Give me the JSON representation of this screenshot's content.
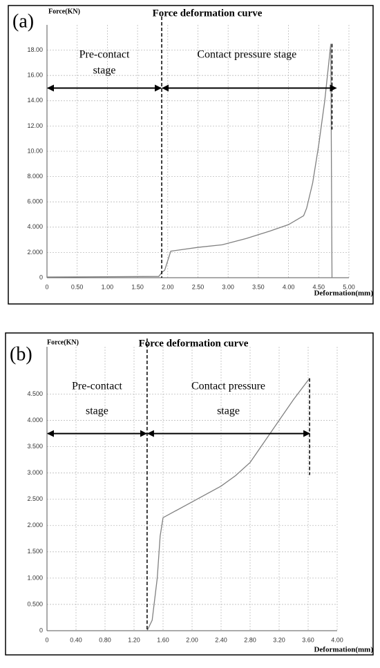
{
  "chart_data": [
    {
      "type": "line",
      "label": "(a)",
      "title": "Force deformation curve",
      "ylabel": "Force(KN)",
      "xlabel": "Deformation(mm)",
      "x": [
        0,
        1.85,
        1.9,
        1.95,
        2.05,
        2.5,
        2.9,
        3.3,
        3.7,
        4.0,
        4.25,
        4.3,
        4.4,
        4.5,
        4.6,
        4.7,
        4.72
      ],
      "series": [
        {
          "color": "#808080",
          "values": [
            0.05,
            0.1,
            0.4,
            0.6,
            2.1,
            2.4,
            2.6,
            3.1,
            3.7,
            4.2,
            4.9,
            5.5,
            7.5,
            10.5,
            14,
            18.5,
            0
          ]
        }
      ],
      "xlim": [
        0,
        5
      ],
      "ylim": [
        0,
        20
      ],
      "xticks": [
        0,
        {
          "value": 0.5,
          "label": "0.50"
        },
        {
          "value": 1,
          "label": "1.00"
        },
        {
          "value": 1.5,
          "label": "1.50"
        },
        {
          "value": 2,
          "label": "2.00"
        },
        {
          "value": 2.5,
          "label": "2.50"
        },
        {
          "value": 3,
          "label": "3.00"
        },
        {
          "value": 3.5,
          "label": "3.50"
        },
        {
          "value": 4,
          "label": "4.00"
        },
        {
          "value": 4.5,
          "label": "4.50"
        },
        {
          "value": 5,
          "label": "5.00"
        }
      ],
      "yticks": [
        0,
        {
          "value": 2,
          "label": "2.000"
        },
        {
          "value": 4,
          "label": "4.000"
        },
        {
          "value": 6,
          "label": "6.000"
        },
        {
          "value": 8,
          "label": "8.000"
        },
        {
          "value": 10,
          "label": "10.00"
        },
        {
          "value": 12,
          "label": "12.00"
        },
        {
          "value": 14,
          "label": "14.00"
        },
        {
          "value": 16,
          "label": "16.00"
        },
        {
          "value": 18,
          "label": "18.00"
        }
      ],
      "grid": true,
      "stage_lines": [
        1.9,
        4.72
      ],
      "arrow_y": 15,
      "stage_labels": [
        [
          "Pre-contact",
          "stage"
        ],
        [
          "Contact pressure stage"
        ]
      ]
    },
    {
      "type": "line",
      "label": "(b)",
      "title": "Force deformation curve",
      "ylabel": "Force(KN)",
      "xlabel": "Deformation(mm)",
      "x": [
        1.38,
        1.45,
        1.52,
        1.56,
        1.6,
        2.0,
        2.4,
        2.6,
        2.8,
        3.0,
        3.2,
        3.4,
        3.62
      ],
      "series": [
        {
          "color": "#808080",
          "values": [
            0,
            0.2,
            1.0,
            1.8,
            2.15,
            2.45,
            2.75,
            2.95,
            3.2,
            3.6,
            4.0,
            4.4,
            4.8
          ]
        }
      ],
      "xlim": [
        0,
        4
      ],
      "ylim": [
        0,
        5.4
      ],
      "xticks": [
        0,
        {
          "value": 0.4,
          "label": "0.40"
        },
        {
          "value": 0.8,
          "label": "0.80"
        },
        {
          "value": 1.2,
          "label": "1.20"
        },
        {
          "value": 1.6,
          "label": "1.60"
        },
        {
          "value": 2,
          "label": "2.00"
        },
        {
          "value": 2.4,
          "label": "2.40"
        },
        {
          "value": 2.8,
          "label": "2.80"
        },
        {
          "value": 3.2,
          "label": "3.20"
        },
        {
          "value": 3.6,
          "label": "3.60"
        },
        {
          "value": 4,
          "label": "4.00"
        }
      ],
      "yticks": [
        0,
        {
          "value": 0.5,
          "label": "0.500"
        },
        {
          "value": 1,
          "label": "1.000"
        },
        {
          "value": 1.5,
          "label": "1.500"
        },
        {
          "value": 2,
          "label": "2.000"
        },
        {
          "value": 2.5,
          "label": "2.500"
        },
        {
          "value": 3,
          "label": "3.000"
        },
        {
          "value": 3.5,
          "label": "3.500"
        },
        {
          "value": 4,
          "label": "4.000"
        },
        {
          "value": 4.5,
          "label": "4.500"
        }
      ],
      "grid": true,
      "stage_lines": [
        1.38,
        3.62
      ],
      "arrow_y": 3.75,
      "stage_labels": [
        [
          "Pre-contact",
          "stage"
        ],
        [
          "Contact pressure",
          "stage"
        ]
      ]
    }
  ]
}
